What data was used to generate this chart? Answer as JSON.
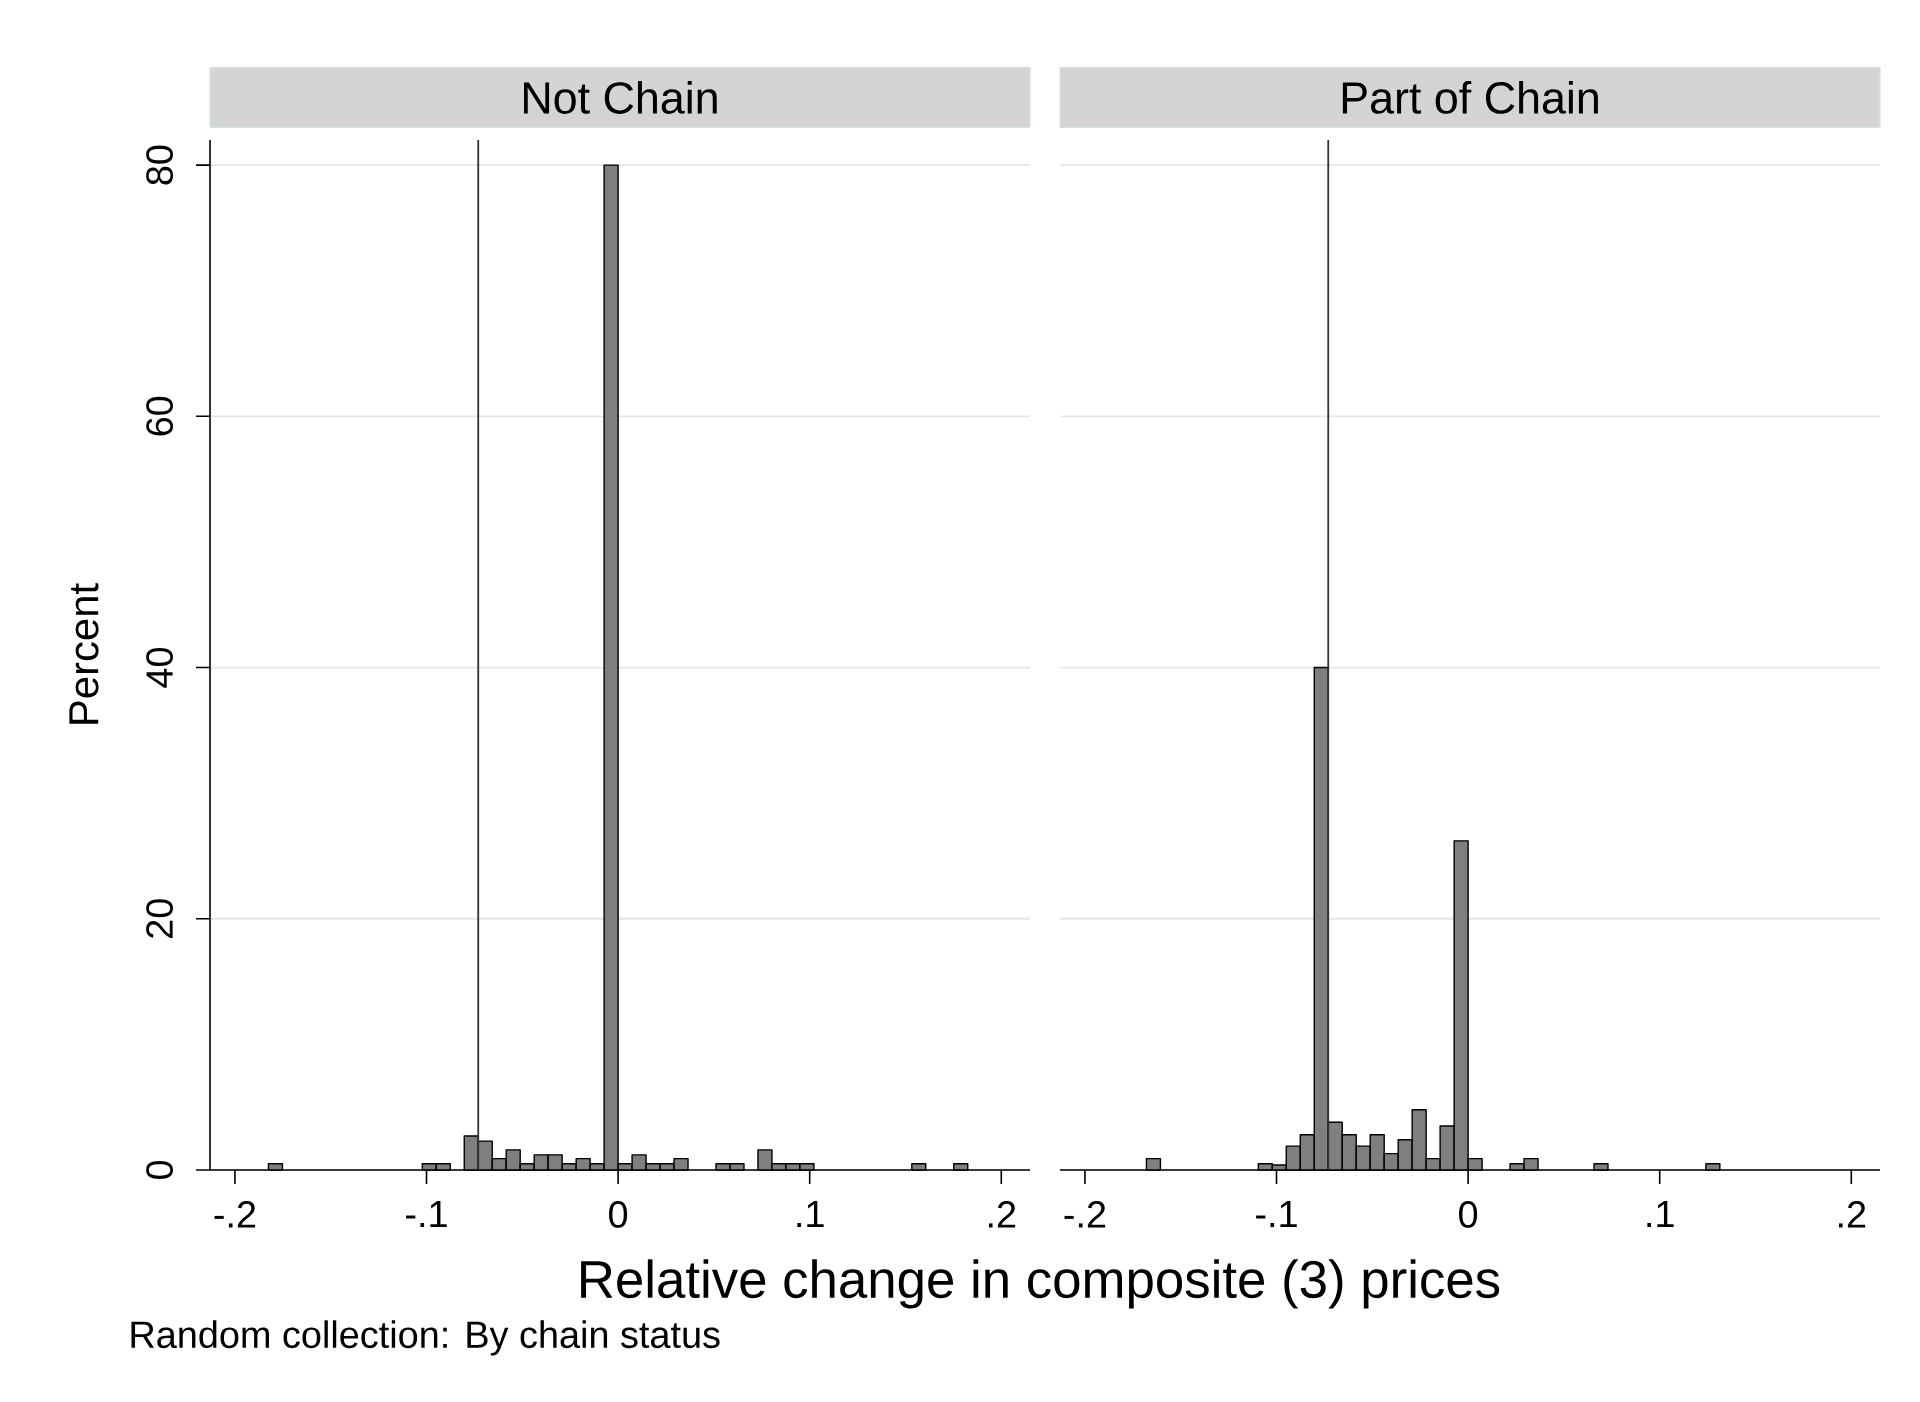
{
  "chart_data": [
    {
      "type": "histogram",
      "title": "Not Chain",
      "xlabel": "Relative change in composite (3) prices",
      "ylabel": "Percent",
      "annotations": [
        "Random collection: By chain status"
      ],
      "bins": [
        -0.1825,
        -0.1752,
        -0.1679,
        -0.1606,
        -0.1533,
        -0.146,
        -0.1387,
        -0.1314,
        -0.1241,
        -0.1168,
        -0.1095,
        -0.1022,
        -0.0949,
        -0.0876,
        -0.0803,
        -0.073,
        -0.0657,
        -0.0584,
        -0.0511,
        -0.0438,
        -0.0365,
        -0.0292,
        -0.0219,
        -0.0146,
        -0.0073,
        0,
        0.0073,
        0.0146,
        0.0219,
        0.0292,
        0.0365,
        0.0438,
        0.0511,
        0.0584,
        0.0657,
        0.073,
        0.0803,
        0.0876,
        0.0949,
        0.1022,
        0.1095,
        0.1168,
        0.1241,
        0.1314,
        0.1387,
        0.146,
        0.1533,
        0.1606,
        0.1679,
        0.1752,
        0.1825
      ],
      "values": [
        0.5,
        0,
        0,
        0,
        0,
        0,
        0,
        0,
        0,
        0,
        0,
        0.5,
        0.5,
        0,
        2.7,
        2.3,
        0.9,
        1.6,
        0.5,
        1.2,
        1.2,
        0.5,
        0.9,
        0.5,
        80,
        0.5,
        1.2,
        0.5,
        0.5,
        0.9,
        0,
        0,
        0.5,
        0.5,
        0,
        1.6,
        0.5,
        0.5,
        0.5,
        0,
        0,
        0,
        0,
        0,
        0,
        0,
        0.5,
        0,
        0,
        0.5
      ],
      "color": "#7f7f7f",
      "xlim": [
        -0.213,
        0.215
      ],
      "ylim": [
        0,
        82
      ],
      "xticks": [
        {
          "value": -0.2,
          "label": "-.2"
        },
        {
          "value": -0.1,
          "label": "-.1"
        },
        0,
        {
          "value": 0.1,
          "label": ".1"
        },
        {
          "value": 0.2,
          "label": ".2"
        }
      ],
      "yticks": [
        0,
        20,
        40,
        60,
        80
      ],
      "grid": "y",
      "ref_lines": [
        {
          "axis": "x",
          "value": -0.073,
          "color": "#333333"
        }
      ]
    },
    {
      "type": "histogram",
      "title": "Part of Chain",
      "bins": [
        -0.1825,
        -0.1752,
        -0.1679,
        -0.1606,
        -0.1533,
        -0.146,
        -0.1387,
        -0.1314,
        -0.1241,
        -0.1168,
        -0.1095,
        -0.1022,
        -0.0949,
        -0.0876,
        -0.0803,
        -0.073,
        -0.0657,
        -0.0584,
        -0.0511,
        -0.0438,
        -0.0365,
        -0.0292,
        -0.0219,
        -0.0146,
        -0.0073,
        0,
        0.0073,
        0.0146,
        0.0219,
        0.0292,
        0.0365,
        0.0438,
        0.0511,
        0.0584,
        0.0657,
        0.073,
        0.0803,
        0.0876,
        0.0949,
        0.1022,
        0.1095,
        0.1168,
        0.1241,
        0.1314,
        0.1387,
        0.146,
        0.1533,
        0.1606,
        0.1679,
        0.1752,
        0.1825
      ],
      "values": [
        0,
        0,
        0.9,
        0,
        0,
        0,
        0,
        0,
        0,
        0,
        0.5,
        0.4,
        1.9,
        2.8,
        40,
        3.8,
        2.8,
        1.9,
        2.8,
        1.3,
        2.4,
        4.8,
        0.9,
        3.5,
        26.2,
        0.9,
        0,
        0,
        0.5,
        0.9,
        0,
        0,
        0,
        0,
        0.5,
        0,
        0,
        0,
        0,
        0,
        0,
        0,
        0.5,
        0,
        0,
        0,
        0,
        0,
        0,
        0
      ],
      "color": "#7f7f7f",
      "xlim": [
        -0.213,
        0.215
      ],
      "ylim": [
        0,
        82
      ],
      "xticks": [
        {
          "value": -0.2,
          "label": "-.2"
        },
        {
          "value": -0.1,
          "label": "-.1"
        },
        0,
        {
          "value": 0.1,
          "label": ".1"
        },
        {
          "value": 0.2,
          "label": ".2"
        }
      ],
      "yticks": [
        0,
        20,
        40,
        60,
        80
      ],
      "grid": "y",
      "tick_labels": "x",
      "ref_lines": [
        {
          "axis": "x",
          "value": -0.073,
          "color": "#333333"
        }
      ]
    }
  ]
}
